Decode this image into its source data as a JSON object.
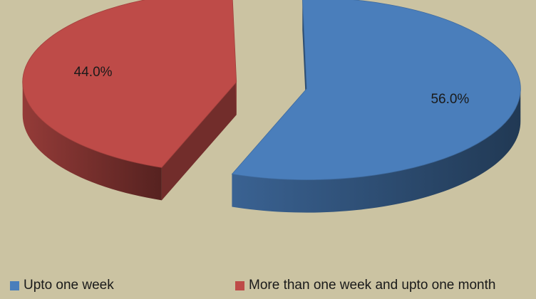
{
  "chart_data": {
    "type": "pie",
    "title": "",
    "variant": "3d-exploded",
    "series": [
      {
        "name": "Upto one week",
        "value": 56.0,
        "label": "56.0%",
        "color": "#4a7ebb"
      },
      {
        "name": "More than one week and upto one month",
        "value": 44.0,
        "label": "44.0%",
        "color": "#be4b48"
      }
    ],
    "legend": "bottom"
  },
  "colors": {
    "background": "#cbc3a2"
  }
}
